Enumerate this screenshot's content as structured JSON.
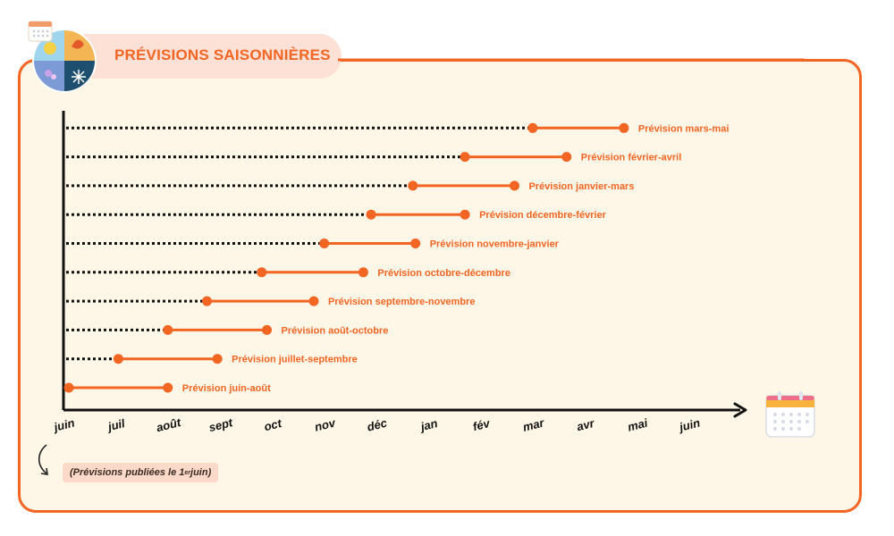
{
  "header": {
    "title": "PRÉVISIONS SAISONNIÈRES"
  },
  "note": {
    "text_before": "(Prévisions publiées le 1",
    "sup": "er",
    "text_after": " juin)"
  },
  "colors": {
    "accent": "#f26522",
    "panel_bg": "#fef6e6",
    "tab_bg": "#fde0d6",
    "axis": "#111111"
  },
  "icons": {
    "header": "seasons-icon",
    "axis_end": "calendar-icon",
    "note_arrow": "curved-arrow-icon"
  },
  "chart_data": {
    "type": "timeline",
    "x_ticks": [
      "juin",
      "juil",
      "août",
      "sept",
      "oct",
      "nov",
      "déc",
      "jan",
      "fév",
      "mar",
      "avr",
      "mai",
      "juin"
    ],
    "forecasts": [
      {
        "label": "Prévision juin-août",
        "start": 0.0,
        "end": 1.9
      },
      {
        "label": "Prévision juillet-septembre",
        "start": 0.95,
        "end": 2.85
      },
      {
        "label": "Prévision août-octobre",
        "start": 1.9,
        "end": 3.8
      },
      {
        "label": "Prévision septembre-novembre",
        "start": 2.65,
        "end": 4.7
      },
      {
        "label": "Prévision octobre-décembre",
        "start": 3.7,
        "end": 5.65
      },
      {
        "label": "Prévision novembre-janvier",
        "start": 4.9,
        "end": 6.65
      },
      {
        "label": "Prévision décembre-février",
        "start": 5.8,
        "end": 7.6
      },
      {
        "label": "Prévision janvier-mars",
        "start": 6.6,
        "end": 8.55
      },
      {
        "label": "Prévision février-avril",
        "start": 7.6,
        "end": 9.55
      },
      {
        "label": "Prévision mars-mai",
        "start": 8.9,
        "end": 10.65
      }
    ]
  }
}
